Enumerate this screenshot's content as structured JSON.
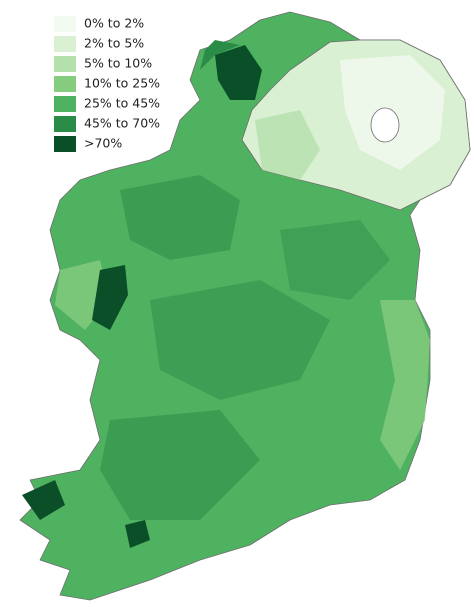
{
  "legend": {
    "items": [
      {
        "label": "0% to 2%",
        "color": "#f3faf0"
      },
      {
        "label": "2% to 5%",
        "color": "#d9f0d3"
      },
      {
        "label": "5% to 10%",
        "color": "#b4e0ab"
      },
      {
        "label": "10% to 25%",
        "color": "#86cc7f"
      },
      {
        "label": "25% to 45%",
        "color": "#4fb261"
      },
      {
        "label": "45% to 70%",
        "color": "#2a8c47"
      },
      {
        "label": ">70%",
        "color": "#0b4f28"
      }
    ]
  }
}
